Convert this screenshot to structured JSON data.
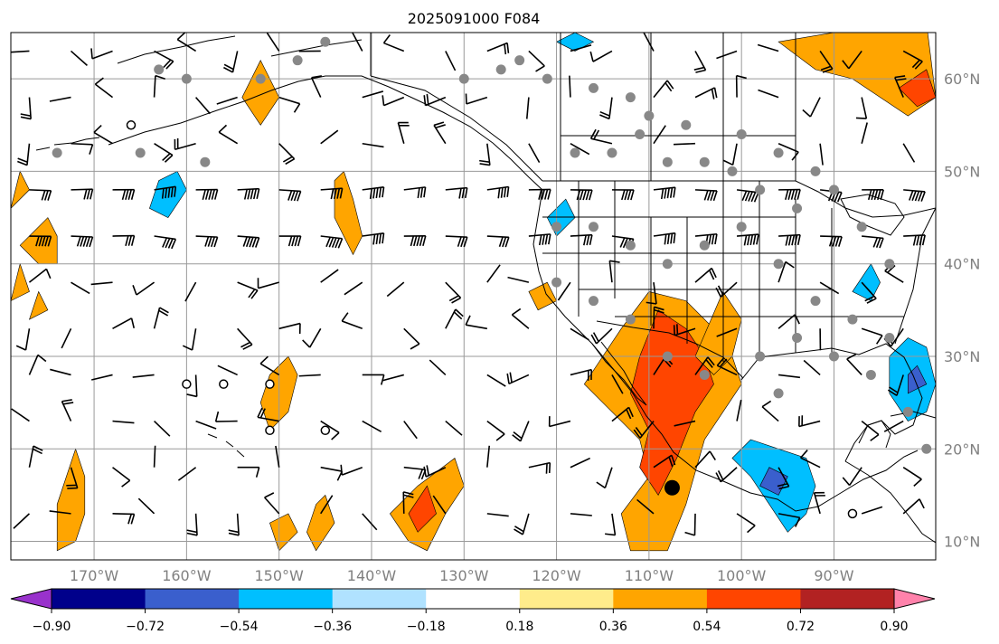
{
  "chart_data": {
    "type": "heatmap",
    "title": "2025091000 F084",
    "x_tick_labels": [
      "170°W",
      "160°W",
      "150°W",
      "140°W",
      "130°W",
      "120°W",
      "110°W",
      "100°W",
      "90°W"
    ],
    "x_ticks_lon": [
      -170,
      -160,
      -150,
      -140,
      -130,
      -120,
      -110,
      -100,
      -90
    ],
    "y_tick_labels": [
      "60°N",
      "50°N",
      "40°N",
      "30°N",
      "20°N",
      "10°N"
    ],
    "y_ticks_lat": [
      60,
      50,
      40,
      30,
      20,
      10
    ],
    "xlim_lon": [
      -179,
      -79
    ],
    "ylim_lat": [
      8,
      65
    ],
    "grid": true,
    "colorbar": {
      "orientation": "horizontal",
      "extend": "both",
      "levels": [
        -0.9,
        -0.72,
        -0.54,
        -0.36,
        -0.18,
        0.18,
        0.36,
        0.54,
        0.72,
        0.9
      ],
      "tick_labels": [
        "−0.90",
        "−0.72",
        "−0.54",
        "−0.36",
        "−0.18",
        "0.18",
        "0.36",
        "0.54",
        "0.72",
        "0.90"
      ],
      "colors": [
        "#9932cc",
        "#00008b",
        "#3a5fcd",
        "#00bfff",
        "#b0e2ff",
        "#ffffff",
        "#ffec8b",
        "#ffa500",
        "#ff4500",
        "#b22222",
        "#ff82ab"
      ]
    },
    "anomaly_regions": [
      {
        "value": 0.45,
        "points": [
          [
            -110,
            37
          ],
          [
            -106,
            36
          ],
          [
            -103,
            33
          ],
          [
            -101,
            30
          ],
          [
            -100,
            27
          ],
          [
            -102,
            24
          ],
          [
            -104,
            21
          ],
          [
            -106,
            14
          ],
          [
            -108,
            9
          ],
          [
            -112,
            9
          ],
          [
            -113,
            13
          ],
          [
            -110,
            17
          ],
          [
            -111,
            21
          ],
          [
            -114,
            24
          ],
          [
            -117,
            27
          ],
          [
            -115,
            30
          ],
          [
            -113,
            33
          ]
        ]
      },
      {
        "value": 0.63,
        "points": [
          [
            -109,
            35
          ],
          [
            -106,
            33
          ],
          [
            -104,
            30
          ],
          [
            -103,
            27
          ],
          [
            -105,
            24
          ],
          [
            -107,
            19
          ],
          [
            -109,
            15
          ],
          [
            -111,
            18
          ],
          [
            -110,
            22
          ],
          [
            -112,
            26
          ],
          [
            -111,
            30
          ]
        ]
      },
      {
        "value": 0.45,
        "points": [
          [
            -102,
            37
          ],
          [
            -100,
            34
          ],
          [
            -101,
            30
          ],
          [
            -103,
            28
          ],
          [
            -105,
            30
          ]
        ]
      },
      {
        "value": 0.45,
        "points": [
          [
            -172,
            20
          ],
          [
            -171,
            17
          ],
          [
            -171,
            13
          ],
          [
            -172,
            10
          ],
          [
            -174,
            9
          ],
          [
            -174,
            14
          ]
        ]
      },
      {
        "value": 0.45,
        "points": [
          [
            -131,
            19
          ],
          [
            -130,
            16
          ],
          [
            -132,
            13
          ],
          [
            -134,
            9
          ],
          [
            -136,
            10
          ],
          [
            -138,
            13
          ],
          [
            -135,
            16
          ]
        ]
      },
      {
        "value": 0.63,
        "points": [
          [
            -134,
            16
          ],
          [
            -133,
            13
          ],
          [
            -135,
            11
          ],
          [
            -136,
            13
          ]
        ]
      },
      {
        "value": 0.45,
        "points": [
          [
            -149,
            13
          ],
          [
            -148,
            11
          ],
          [
            -150,
            9
          ],
          [
            -151,
            12
          ]
        ]
      },
      {
        "value": 0.45,
        "points": [
          [
            -145,
            15
          ],
          [
            -144,
            12
          ],
          [
            -146,
            9
          ],
          [
            -147,
            11
          ],
          [
            -146,
            14
          ]
        ]
      },
      {
        "value": 0.45,
        "points": [
          [
            -149,
            30
          ],
          [
            -148,
            28
          ],
          [
            -149,
            24
          ],
          [
            -151,
            22
          ],
          [
            -152,
            25
          ],
          [
            -151,
            28
          ]
        ]
      },
      {
        "value": 0.45,
        "points": [
          [
            -143,
            50
          ],
          [
            -142,
            47
          ],
          [
            -141,
            43
          ],
          [
            -142,
            41
          ],
          [
            -144,
            45
          ],
          [
            -144,
            49
          ]
        ]
      },
      {
        "value": 0.45,
        "points": [
          [
            -152,
            62
          ],
          [
            -150,
            58
          ],
          [
            -152,
            55
          ],
          [
            -154,
            58
          ]
        ]
      },
      {
        "value": 0.45,
        "points": [
          [
            -175,
            45
          ],
          [
            -174,
            43
          ],
          [
            -174,
            40
          ],
          [
            -176,
            40
          ],
          [
            -178,
            42
          ]
        ]
      },
      {
        "value": 0.45,
        "points": [
          [
            -178,
            50
          ],
          [
            -177,
            48
          ],
          [
            -179,
            46
          ]
        ]
      },
      {
        "value": 0.45,
        "points": [
          [
            -176,
            37
          ],
          [
            -175,
            35
          ],
          [
            -177,
            34
          ]
        ]
      },
      {
        "value": 0.45,
        "points": [
          [
            -178,
            40
          ],
          [
            -177,
            37
          ],
          [
            -179,
            36
          ]
        ]
      },
      {
        "value": 0.45,
        "points": [
          [
            -121,
            38
          ],
          [
            -120,
            36
          ],
          [
            -122,
            35
          ],
          [
            -123,
            37
          ]
        ]
      },
      {
        "value": 0.45,
        "points": [
          [
            -84,
            66
          ],
          [
            -80,
            66
          ],
          [
            -79,
            58
          ],
          [
            -82,
            56
          ],
          [
            -85,
            58
          ],
          [
            -88,
            60
          ],
          [
            -92,
            61
          ],
          [
            -96,
            64
          ]
        ]
      },
      {
        "value": 0.63,
        "points": [
          [
            -80,
            61
          ],
          [
            -79,
            58
          ],
          [
            -81,
            57
          ],
          [
            -83,
            59
          ]
        ]
      },
      {
        "value": -0.45,
        "points": [
          [
            -161,
            50
          ],
          [
            -160,
            48
          ],
          [
            -162,
            45
          ],
          [
            -164,
            46
          ],
          [
            -163,
            49
          ]
        ]
      },
      {
        "value": -0.45,
        "points": [
          [
            -119,
            47
          ],
          [
            -118,
            45
          ],
          [
            -120,
            43
          ],
          [
            -121,
            45
          ]
        ]
      },
      {
        "value": -0.45,
        "points": [
          [
            -99,
            21
          ],
          [
            -96,
            20
          ],
          [
            -93,
            19
          ],
          [
            -92,
            16
          ],
          [
            -93,
            13
          ],
          [
            -95,
            11
          ],
          [
            -97,
            14
          ],
          [
            -99,
            17
          ],
          [
            -101,
            19
          ]
        ]
      },
      {
        "value": -0.63,
        "points": [
          [
            -97,
            18
          ],
          [
            -95,
            17
          ],
          [
            -96,
            15
          ],
          [
            -98,
            16
          ]
        ]
      },
      {
        "value": -0.45,
        "points": [
          [
            -82,
            32
          ],
          [
            -80,
            31
          ],
          [
            -79,
            27
          ],
          [
            -80,
            24
          ],
          [
            -82,
            23
          ],
          [
            -84,
            26
          ],
          [
            -84,
            30
          ]
        ]
      },
      {
        "value": -0.63,
        "points": [
          [
            -81,
            29
          ],
          [
            -80,
            27
          ],
          [
            -82,
            26
          ],
          [
            -82,
            28
          ]
        ]
      },
      {
        "value": -0.45,
        "points": [
          [
            -86,
            40
          ],
          [
            -85,
            38
          ],
          [
            -86,
            36
          ],
          [
            -88,
            37
          ]
        ]
      },
      {
        "value": -0.45,
        "points": [
          [
            -118,
            65
          ],
          [
            -116,
            64
          ],
          [
            -118,
            63
          ],
          [
            -120,
            64
          ]
        ]
      }
    ]
  }
}
